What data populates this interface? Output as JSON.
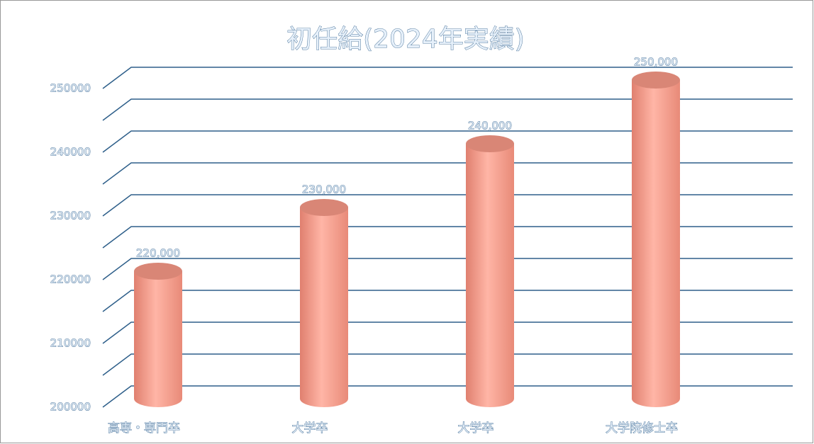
{
  "chart_data": {
    "type": "bar3d",
    "title": "初任給(2024年実績)",
    "categories": [
      "高専・専門卒",
      "大学卒",
      "大学卒",
      "大学院修士卒"
    ],
    "values": [
      220000,
      230000,
      240000,
      250000
    ],
    "value_labels": [
      "220,000",
      "230,000",
      "240,000",
      "250,000"
    ],
    "color": "#f4a090",
    "ylim": [
      200000,
      250000
    ],
    "yticks": [
      200000,
      210000,
      220000,
      230000,
      240000,
      250000
    ],
    "minor_yticks": [
      205000,
      215000,
      225000,
      235000,
      245000
    ],
    "grid": true
  }
}
